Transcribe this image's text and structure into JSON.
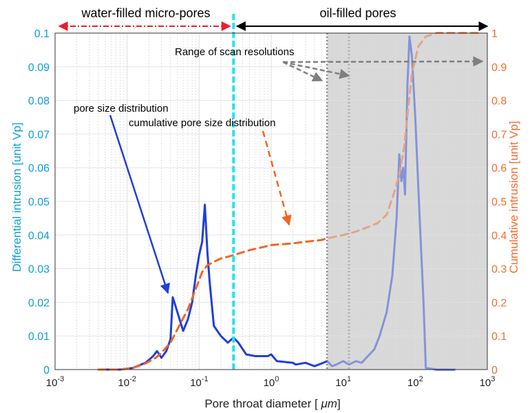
{
  "chart_data": {
    "type": "line",
    "xscale": "log",
    "xlim": [
      0.001,
      1000
    ],
    "ylim_left": [
      0,
      0.1
    ],
    "ylim_right": [
      0,
      1
    ],
    "grid": true,
    "xlabel_prefix": "Pore throat diameter [ ",
    "xlabel_unit": "μm",
    "xlabel_suffix": "]",
    "ylabel_left": "Differential intrusion [unit Vp]",
    "ylabel_right": "Cumulative intrusion [unit Vp]",
    "x_ticks": [
      {
        "base": "10",
        "exp": "-3"
      },
      {
        "base": "10",
        "exp": "-2"
      },
      {
        "base": "10",
        "exp": "-1"
      },
      {
        "base": "10",
        "exp": "0"
      },
      {
        "base": "10",
        "exp": "1"
      },
      {
        "base": "10",
        "exp": "2"
      },
      {
        "base": "10",
        "exp": "3"
      }
    ],
    "y_ticks_left": [
      "0",
      "0.01",
      "0.02",
      "0.03",
      "0.04",
      "0.05",
      "0.06",
      "0.07",
      "0.08",
      "0.09",
      "0.1"
    ],
    "y_ticks_right": [
      "0",
      "0.1",
      "0.2",
      "0.3",
      "0.4",
      "0.5",
      "0.6",
      "0.7",
      "0.8",
      "0.9",
      "1"
    ],
    "regions": {
      "water_label": "water-filled micro-pores",
      "oil_label": "oil-filled pores",
      "boundary_x": 0.3,
      "water_color": "#e8202a",
      "oil_color": "#000000",
      "boundary_color": "#22e5f0"
    },
    "scan_range": {
      "x_min": 6,
      "x_max": 12,
      "x_end": 1000,
      "color": "#7f7f7f",
      "fill": "#d9d9d9"
    },
    "annotations": {
      "psd": "pore size distribution",
      "cumulative": "cumulative pore size distribution",
      "scan": "Range of scan resolutions"
    },
    "series": [
      {
        "name": "pore size distribution",
        "axis": "left",
        "color": "#1f3fd8",
        "style": "solid",
        "points": [
          [
            0.004,
            0
          ],
          [
            0.008,
            0
          ],
          [
            0.012,
            0.0005
          ],
          [
            0.018,
            0.002
          ],
          [
            0.023,
            0.004
          ],
          [
            0.026,
            0.0055
          ],
          [
            0.03,
            0.0035
          ],
          [
            0.035,
            0.0055
          ],
          [
            0.04,
            0.009
          ],
          [
            0.043,
            0.0215
          ],
          [
            0.05,
            0.017
          ],
          [
            0.06,
            0.0115
          ],
          [
            0.07,
            0.015
          ],
          [
            0.08,
            0.02
          ],
          [
            0.09,
            0.028
          ],
          [
            0.1,
            0.034
          ],
          [
            0.11,
            0.038
          ],
          [
            0.12,
            0.049
          ],
          [
            0.13,
            0.035
          ],
          [
            0.14,
            0.026
          ],
          [
            0.16,
            0.013
          ],
          [
            0.2,
            0.01
          ],
          [
            0.25,
            0.008
          ],
          [
            0.3,
            0.0095
          ],
          [
            0.35,
            0.008
          ],
          [
            0.45,
            0.0045
          ],
          [
            0.6,
            0.004
          ],
          [
            0.9,
            0.004
          ],
          [
            1.0,
            0.0045
          ],
          [
            1.2,
            0.0025
          ],
          [
            2,
            0.002
          ],
          [
            2.2,
            0.0015
          ],
          [
            3,
            0.002
          ],
          [
            4,
            0.001
          ],
          [
            5,
            0.0018
          ],
          [
            6,
            0.0025
          ],
          [
            7,
            0.001
          ],
          [
            8,
            0.0015
          ],
          [
            10,
            0.0025
          ],
          [
            12,
            0.0015
          ],
          [
            15,
            0.0025
          ],
          [
            18,
            0.002
          ],
          [
            22,
            0.004
          ],
          [
            27,
            0.006
          ],
          [
            32,
            0.01
          ],
          [
            40,
            0.017
          ],
          [
            48,
            0.028
          ],
          [
            55,
            0.045
          ],
          [
            60,
            0.064
          ],
          [
            64,
            0.056
          ],
          [
            68,
            0.06
          ],
          [
            72,
            0.052
          ],
          [
            78,
            0.085
          ],
          [
            83,
            0.099
          ],
          [
            90,
            0.093
          ],
          [
            100,
            0.075
          ],
          [
            115,
            0.045
          ],
          [
            130,
            0.02
          ],
          [
            140,
            0.0005
          ],
          [
            200,
            0
          ],
          [
            350,
            0
          ]
        ]
      },
      {
        "name": "cumulative pore size distribution",
        "axis": "right",
        "color": "#f26522",
        "style": "dashed",
        "points": [
          [
            0.004,
            0
          ],
          [
            0.008,
            0
          ],
          [
            0.012,
            0.005
          ],
          [
            0.018,
            0.018
          ],
          [
            0.025,
            0.035
          ],
          [
            0.03,
            0.05
          ],
          [
            0.04,
            0.08
          ],
          [
            0.05,
            0.12
          ],
          [
            0.07,
            0.18
          ],
          [
            0.09,
            0.24
          ],
          [
            0.11,
            0.29
          ],
          [
            0.13,
            0.31
          ],
          [
            0.16,
            0.32
          ],
          [
            0.2,
            0.33
          ],
          [
            0.3,
            0.34
          ],
          [
            0.5,
            0.355
          ],
          [
            0.8,
            0.365
          ],
          [
            1,
            0.37
          ],
          [
            2,
            0.375
          ],
          [
            3,
            0.38
          ],
          [
            5,
            0.385
          ],
          [
            6,
            0.39
          ],
          [
            10,
            0.4
          ],
          [
            15,
            0.41
          ],
          [
            20,
            0.42
          ],
          [
            30,
            0.435
          ],
          [
            40,
            0.46
          ],
          [
            50,
            0.52
          ],
          [
            60,
            0.58
          ],
          [
            70,
            0.66
          ],
          [
            80,
            0.78
          ],
          [
            90,
            0.88
          ],
          [
            110,
            0.96
          ],
          [
            140,
            0.99
          ],
          [
            200,
            1.0
          ],
          [
            800,
            1.0
          ]
        ]
      }
    ]
  }
}
